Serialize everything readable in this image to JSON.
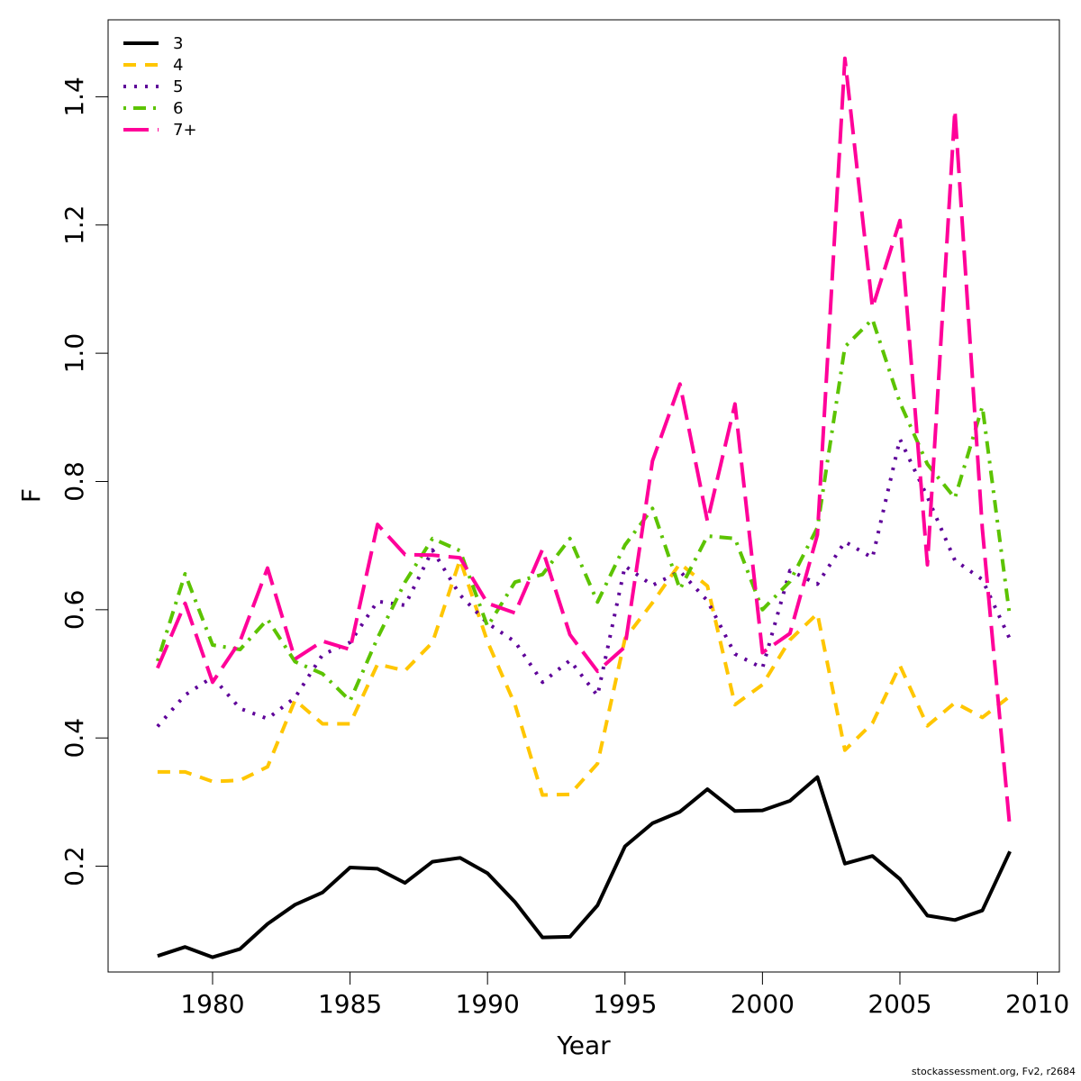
{
  "chart_data": {
    "type": "line",
    "xlabel": "Year",
    "ylabel": "F",
    "xlim": [
      1976.2,
      2010.8
    ],
    "ylim": [
      0.035,
      1.52
    ],
    "x_ticks": [
      1980,
      1985,
      1990,
      1995,
      2000,
      2005,
      2010
    ],
    "y_ticks": [
      0.2,
      0.4,
      0.6,
      0.8,
      1.0,
      1.2,
      1.4
    ],
    "x_tick_labels": [
      "1980",
      "1985",
      "1990",
      "1995",
      "2000",
      "2005",
      "2010"
    ],
    "y_tick_labels": [
      "0.2",
      "0.4",
      "0.6",
      "0.8",
      "1.0",
      "1.2",
      "1.4"
    ],
    "grid": false,
    "legend_position": "top-left",
    "x": [
      1978,
      1979,
      1980,
      1981,
      1982,
      1983,
      1984,
      1985,
      1986,
      1987,
      1988,
      1989,
      1990,
      1991,
      1992,
      1993,
      1994,
      1995,
      1996,
      1997,
      1998,
      1999,
      2000,
      2001,
      2002,
      2003,
      2004,
      2005,
      2006,
      2007,
      2008,
      2009
    ],
    "series": [
      {
        "name": "3",
        "color": "#000000",
        "dash": "solid",
        "values": [
          0.06,
          0.074,
          0.058,
          0.071,
          0.11,
          0.14,
          0.159,
          0.198,
          0.196,
          0.174,
          0.207,
          0.213,
          0.189,
          0.144,
          0.089,
          0.09,
          0.139,
          0.231,
          0.267,
          0.285,
          0.32,
          0.286,
          0.287,
          0.302,
          0.339,
          0.204,
          0.216,
          0.18,
          0.123,
          0.116,
          0.131,
          0.223
        ]
      },
      {
        "name": "4",
        "color": "#FFC600",
        "dash": "dashed",
        "values": [
          0.347,
          0.347,
          0.332,
          0.334,
          0.355,
          0.459,
          0.422,
          0.422,
          0.515,
          0.505,
          0.549,
          0.678,
          0.55,
          0.452,
          0.311,
          0.312,
          0.36,
          0.555,
          0.611,
          0.672,
          0.637,
          0.452,
          0.483,
          0.553,
          0.594,
          0.381,
          0.423,
          0.513,
          0.419,
          0.455,
          0.432,
          0.465
        ]
      },
      {
        "name": "5",
        "color": "#5E0099",
        "dash": "dotted",
        "values": [
          0.418,
          0.467,
          0.495,
          0.446,
          0.43,
          0.463,
          0.53,
          0.549,
          0.613,
          0.607,
          0.693,
          0.623,
          0.579,
          0.55,
          0.487,
          0.521,
          0.466,
          0.668,
          0.638,
          0.66,
          0.614,
          0.531,
          0.509,
          0.661,
          0.64,
          0.706,
          0.681,
          0.866,
          0.776,
          0.677,
          0.647,
          0.554
        ]
      },
      {
        "name": "6",
        "color": "#5CC300",
        "dash": "dotdash",
        "values": [
          0.52,
          0.656,
          0.545,
          0.538,
          0.585,
          0.519,
          0.5,
          0.458,
          0.556,
          0.643,
          0.711,
          0.692,
          0.574,
          0.643,
          0.655,
          0.711,
          0.612,
          0.701,
          0.758,
          0.632,
          0.715,
          0.711,
          0.6,
          0.644,
          0.728,
          1.01,
          1.053,
          0.923,
          0.827,
          0.774,
          0.917,
          0.588
        ]
      },
      {
        "name": "7+",
        "color": "#FF0099",
        "dash": "longdash",
        "values": [
          0.509,
          0.61,
          0.487,
          0.551,
          0.665,
          0.523,
          0.551,
          0.538,
          0.733,
          0.686,
          0.685,
          0.681,
          0.61,
          0.595,
          0.694,
          0.561,
          0.504,
          0.542,
          0.832,
          0.952,
          0.738,
          0.921,
          0.533,
          0.563,
          0.717,
          1.46,
          1.071,
          1.207,
          0.67,
          1.379,
          0.726,
          0.259
        ]
      }
    ]
  },
  "footer": "stockassessment.org, Fv2, r2684"
}
